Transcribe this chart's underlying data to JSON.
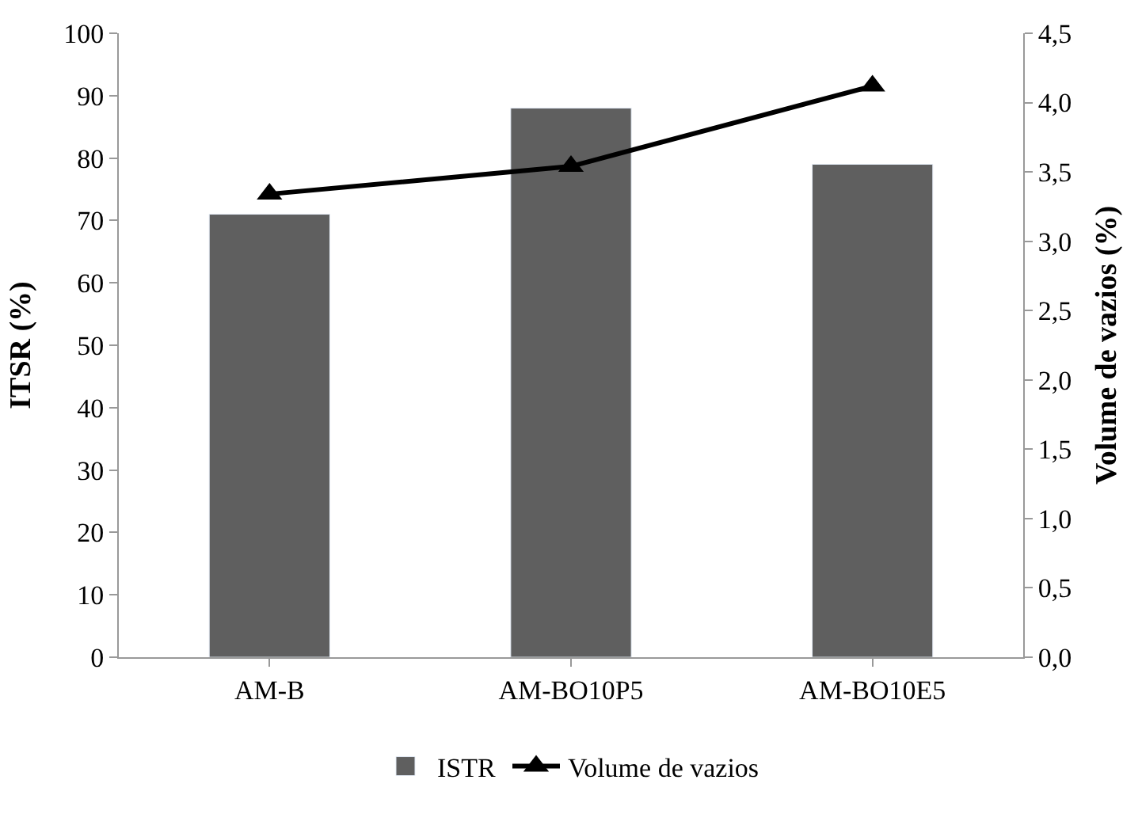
{
  "chart_data": {
    "type": "bar",
    "categories": [
      "AM-B",
      "AM-BO10P5",
      "AM-BO10E5"
    ],
    "ylabel": "ITSR (%)",
    "y2label": "Volume de vazios (%)",
    "series": [
      {
        "name": "ISTR",
        "color": "#5f5f5f",
        "values": [
          71,
          88,
          79
        ]
      },
      {
        "name": "Volume de vazios",
        "type": "line",
        "axis": "y2",
        "color": "#000000",
        "marker": "triangle",
        "values": [
          3.34,
          3.54,
          4.12
        ]
      }
    ],
    "ylim": [
      0,
      100
    ],
    "yticks": [
      0,
      10,
      20,
      30,
      40,
      50,
      60,
      70,
      80,
      90,
      100
    ],
    "y2lim": [
      0,
      4.5
    ],
    "y2ticks": [
      {
        "value": 0,
        "label": "0,0"
      },
      {
        "value": 0.5,
        "label": "0,5"
      },
      {
        "value": 1,
        "label": "1,0"
      },
      {
        "value": 1.5,
        "label": "1,5"
      },
      {
        "value": 2,
        "label": "2,0"
      },
      {
        "value": 2.5,
        "label": "2,5"
      },
      {
        "value": 3,
        "label": "3,0"
      },
      {
        "value": 3.5,
        "label": "3,5"
      },
      {
        "value": 4,
        "label": "4,0"
      },
      {
        "value": 4.5,
        "label": "4,5"
      }
    ],
    "legend": "bottom"
  }
}
